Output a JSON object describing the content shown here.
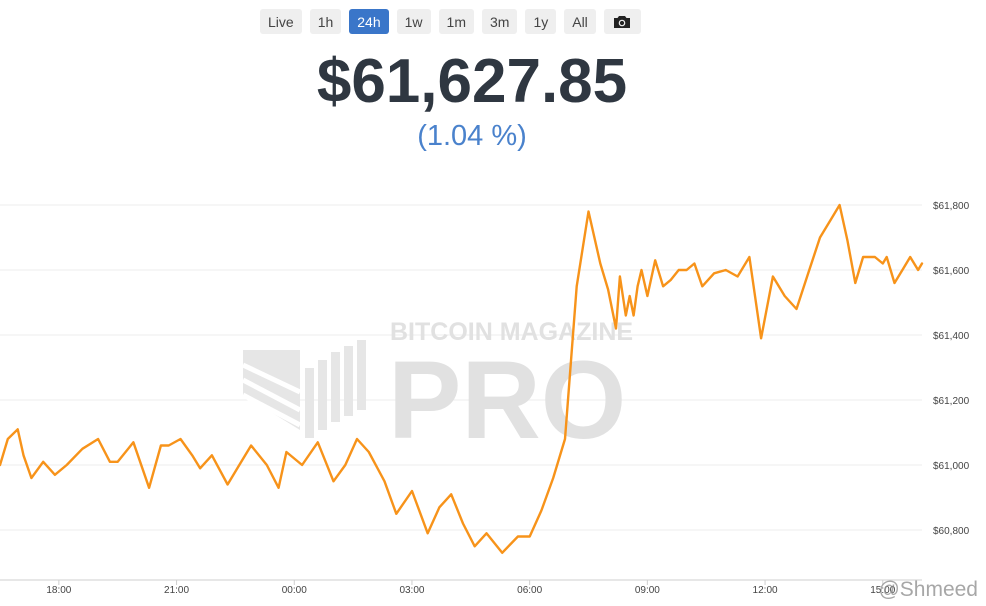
{
  "range_buttons": [
    "Live",
    "1h",
    "24h",
    "1w",
    "1m",
    "3m",
    "1y",
    "All"
  ],
  "active_range": "24h",
  "camera_icon": "camera-icon",
  "price": "$61,627.85",
  "change": "(1.04 %)",
  "watermark": {
    "top": "BITCOIN MAGAZINE",
    "main": "PRO"
  },
  "credit": "@Shmeed",
  "colors": {
    "line": "#f7931a",
    "active": "#3a76c9",
    "price": "#2f3741",
    "change": "#4a82cc"
  },
  "chart_data": {
    "type": "line",
    "grid": true,
    "y_tick_labels": [
      "$60,800",
      "$61,000",
      "$61,200",
      "$61,400",
      "$61,600",
      "$61,800"
    ],
    "y_ticks": [
      60800,
      61000,
      61200,
      61400,
      61600,
      61800
    ],
    "ylim": [
      60600,
      61800
    ],
    "x_tick_labels": [
      "18:00",
      "21:00",
      "00:00",
      "03:00",
      "06:00",
      "09:00",
      "12:00",
      "15:00"
    ],
    "x_ticks": [
      18,
      21,
      24,
      27,
      30,
      33,
      36,
      39
    ],
    "xlim": [
      16.5,
      40
    ],
    "series": [
      {
        "x": [
          16.5,
          16.7,
          16.95,
          17.1,
          17.3,
          17.6,
          17.9,
          18.2,
          18.6,
          19.0,
          19.3,
          19.5,
          19.9,
          20.3,
          20.6,
          20.8,
          21.1,
          21.4,
          21.6,
          21.9,
          22.3,
          22.6,
          22.9,
          23.3,
          23.6,
          23.8,
          24.2,
          24.6,
          25.0,
          25.3,
          25.6,
          25.9,
          26.3,
          26.6,
          27.0,
          27.4,
          27.7,
          28.0,
          28.3,
          28.6,
          28.9,
          29.3,
          29.7,
          30.0,
          30.3,
          30.6,
          30.9,
          31.2,
          31.5,
          31.8,
          32.0,
          32.2,
          32.3,
          32.45,
          32.55,
          32.65,
          32.75,
          32.85,
          33.0,
          33.2,
          33.4,
          33.6,
          33.8,
          34.0,
          34.2,
          34.4,
          34.7,
          35.0,
          35.3,
          35.6,
          35.9,
          36.2,
          36.5,
          36.8,
          37.1,
          37.4,
          37.7,
          37.9,
          38.1,
          38.3,
          38.5,
          38.8,
          39.0,
          39.1,
          39.3,
          39.5,
          39.7,
          39.9,
          40.0
        ],
        "y": [
          61000,
          61080,
          61110,
          61030,
          60960,
          61010,
          60970,
          61000,
          61050,
          61080,
          61010,
          61010,
          61070,
          60930,
          61060,
          61060,
          61080,
          61030,
          60990,
          61030,
          60940,
          61000,
          61060,
          61000,
          60930,
          61040,
          61000,
          61070,
          60950,
          61000,
          61080,
          61040,
          60950,
          60850,
          60920,
          60790,
          60870,
          60910,
          60820,
          60750,
          60790,
          60730,
          60780,
          60780,
          60860,
          60960,
          61080,
          61550,
          61780,
          61620,
          61540,
          61420,
          61580,
          61460,
          61520,
          61460,
          61550,
          61600,
          61520,
          61630,
          61550,
          61570,
          61600,
          61600,
          61620,
          61550,
          61590,
          61600,
          61580,
          61640,
          61390,
          61580,
          61520,
          61480,
          61590,
          61700,
          61760,
          61800,
          61690,
          61560,
          61640,
          61640,
          61620,
          61640,
          61560,
          61600,
          61640,
          61600,
          61620
        ]
      }
    ]
  }
}
